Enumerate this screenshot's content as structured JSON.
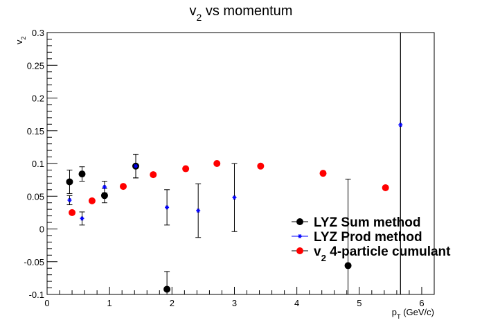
{
  "chart_data": {
    "type": "scatter",
    "title": "v2 vs momentum",
    "xlabel": "pT (GeV/c)",
    "ylabel": "v2",
    "xlim": [
      0,
      6.2
    ],
    "ylim": [
      -0.1,
      0.3
    ],
    "xticks": [
      0,
      1,
      2,
      3,
      4,
      5,
      6
    ],
    "xtick_labels": [
      "0",
      "1",
      "2",
      "3",
      "4",
      "5",
      "6"
    ],
    "yticks": [
      -0.1,
      -0.05,
      0,
      0.05,
      0.1,
      0.15,
      0.2,
      0.25,
      0.3
    ],
    "ytick_labels": [
      "-0.1",
      "-0.05",
      "0",
      "0.05",
      "0.1",
      "0.15",
      "0.2",
      "0.25",
      "0.3"
    ],
    "grid": false,
    "legend_position": "bottom-right",
    "series": [
      {
        "name": "LYZ Sum method",
        "color": "#000000",
        "marker": "circle",
        "x": [
          0.36,
          0.56,
          0.92,
          1.42,
          1.92,
          4.82,
          5.66
        ],
        "y": [
          0.072,
          0.084,
          0.051,
          0.096,
          -0.092,
          -0.056,
          0.31
        ],
        "err": [
          0.018,
          0.011,
          0.011,
          0.018,
          0.027,
          0.132,
          0.5
        ]
      },
      {
        "name": "LYZ Prod method",
        "color": "#0000ff",
        "marker": "star",
        "x": [
          0.36,
          0.56,
          0.92,
          1.42,
          1.92,
          2.42,
          3.0,
          5.66
        ],
        "y": [
          0.044,
          0.016,
          0.064,
          0.096,
          0.033,
          0.028,
          0.048,
          0.159
        ],
        "err": [
          0.007,
          0.01,
          0.009,
          0.018,
          0.027,
          0.041,
          0.052,
          0.7
        ]
      },
      {
        "name": "v2 4-particle cumulant",
        "color": "#ff0000",
        "marker": "circle",
        "x": [
          0.4,
          0.72,
          1.22,
          1.7,
          2.22,
          2.72,
          3.42,
          4.42,
          5.42
        ],
        "y": [
          0.025,
          0.043,
          0.065,
          0.083,
          0.092,
          0.1,
          0.096,
          0.085,
          0.063
        ],
        "err": [
          0,
          0,
          0,
          0,
          0,
          0,
          0,
          0,
          0
        ]
      }
    ]
  }
}
